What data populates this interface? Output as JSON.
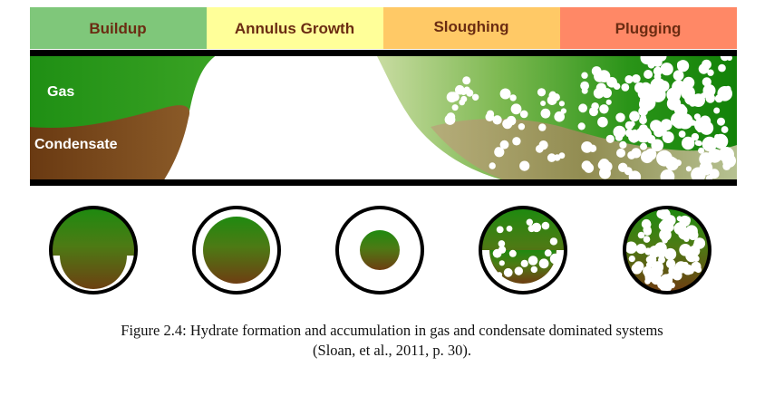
{
  "stages": [
    {
      "label": "Buildup",
      "color": "#7fc77a",
      "text_color": "#6b2c12"
    },
    {
      "label": "Annulus Growth",
      "color": "#ffff99",
      "text_color": "#6b2c12"
    },
    {
      "label": "Sloughing",
      "color": "#ffc966",
      "text_color": "#6b2c12"
    },
    {
      "label": "Plugging",
      "color": "#ff8866",
      "text_color": "#6b2c12"
    }
  ],
  "pipe_labels": {
    "gas": "Gas",
    "condensate": "Condensate"
  },
  "colors": {
    "gas_green": "#2e8b16",
    "condensate_brown": "#7a4a1c",
    "pipe_wall": "#000000",
    "hydrate": "#ffffff",
    "sloughed_green": "#c8dca0"
  },
  "caption": {
    "line1": "Figure 2.4: Hydrate formation and accumulation in gas and condensate dominated systems",
    "line2": "(Sloan, et al., 2011, p. 30)."
  }
}
